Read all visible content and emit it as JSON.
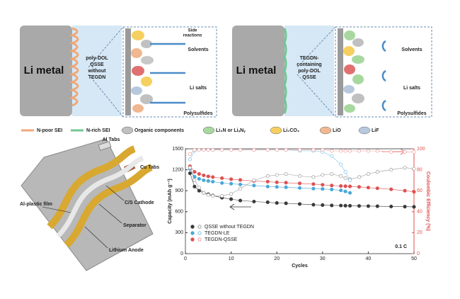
{
  "schematic": {
    "left": {
      "anode": "Li metal",
      "electrolyte": [
        "poly-DOL",
        "QSSE",
        "without",
        "TEGDN"
      ],
      "side_reactions": [
        "Side",
        "reactions"
      ],
      "species": [
        "Solvents",
        "Li salts",
        "Polysulfides"
      ]
    },
    "right": {
      "anode": "Li metal",
      "electrolyte": [
        "TEGDN-",
        "containing",
        "poly-DOL",
        "QSSE"
      ],
      "species": [
        "Solvents",
        "Li salts",
        "Polysulfides"
      ]
    },
    "legend": [
      "N-poor SEI",
      "N-rich SEI",
      "Organic components",
      "Li₃N or LiₓNᵧ",
      "Li₂CO₃",
      "LiO",
      "LiF"
    ]
  },
  "pouch_cell": {
    "labels": [
      "Al Tabs",
      "Cu Tabs",
      "Al-plastic film",
      "C/S Cathode",
      "Separator",
      "Lithium Anode"
    ]
  },
  "chart_data": {
    "type": "line",
    "x": [
      1,
      2,
      3,
      4,
      5,
      6,
      8,
      10,
      12,
      15,
      18,
      20,
      22,
      25,
      28,
      30,
      32,
      34,
      35,
      36,
      38,
      40,
      42,
      45,
      48,
      50
    ],
    "xlim": [
      0,
      50
    ],
    "xticks": [
      0,
      10,
      20,
      30,
      40,
      50
    ],
    "ylim": [
      0,
      1500
    ],
    "yticks": [
      0,
      300,
      600,
      900,
      1200,
      1500
    ],
    "y2lim": [
      0,
      100
    ],
    "y2ticks": [
      0,
      20,
      40,
      60,
      80,
      100
    ],
    "xlabel": "Cycles",
    "ylabel": "Capacity (mAh g⁻¹)",
    "y2label": "Coulombic Efficiency (%)",
    "y2color": "#e05050",
    "annotation": "0.1 C",
    "series": [
      {
        "name": "QSSE without TEGDN",
        "color": "#3a3a3a",
        "values": [
          1150,
          960,
          900,
          870,
          850,
          830,
          800,
          780,
          760,
          745,
          735,
          725,
          720,
          710,
          700,
          695,
          690,
          688,
          686,
          685,
          682,
          680,
          678,
          675,
          672,
          670
        ]
      },
      {
        "name": "TEGDN-LE",
        "color": "#4aa8d8",
        "values": [
          1210,
          1100,
          1070,
          1050,
          1040,
          1030,
          1010,
          1000,
          990,
          975,
          960,
          955,
          950,
          940,
          930,
          925,
          918,
          905,
          890,
          870,
          null,
          null,
          null,
          null,
          null,
          null
        ]
      },
      {
        "name": "TEGDN-QSSE",
        "color": "#e05050",
        "values": [
          1250,
          1170,
          1140,
          1120,
          1105,
          1095,
          1080,
          1065,
          1055,
          1040,
          1030,
          1020,
          1015,
          1005,
          995,
          985,
          975,
          968,
          965,
          962,
          955,
          945,
          935,
          920,
          900,
          885
        ]
      },
      {
        "color": "#9a9a9a",
        "axis": "y2",
        "values": [
          82,
          70,
          63,
          58,
          56,
          55,
          55,
          57,
          62,
          70,
          74,
          75,
          76,
          74,
          73,
          75,
          76,
          74,
          72,
          71,
          73,
          76,
          78,
          80,
          82,
          81
        ]
      },
      {
        "color": "#7cc4e6",
        "axis": "y2",
        "values": [
          90,
          98,
          99,
          99,
          99,
          99,
          99,
          99,
          99,
          99,
          99,
          99,
          99,
          98,
          98,
          97,
          93,
          85,
          78,
          70,
          null,
          null,
          null,
          null,
          null,
          null
        ]
      },
      {
        "color": "#f09a9a",
        "axis": "y2",
        "values": [
          95,
          99,
          99,
          99,
          99,
          99,
          99,
          99,
          99,
          99,
          99,
          99,
          99,
          99,
          99,
          99,
          98,
          98,
          98,
          98,
          98,
          98,
          98,
          97,
          97,
          97
        ]
      }
    ]
  }
}
